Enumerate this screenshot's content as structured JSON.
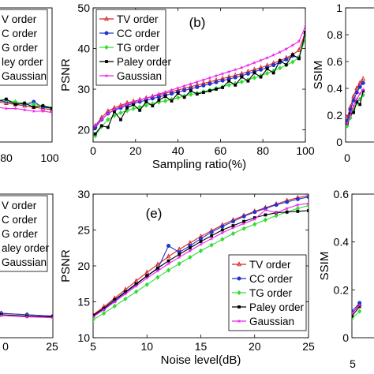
{
  "series_styles": [
    {
      "name": "TV order",
      "color": "#d62020",
      "marker": "triangle"
    },
    {
      "name": "CC order",
      "color": "#2233cc",
      "marker": "circle"
    },
    {
      "name": "TG order",
      "color": "#33dd33",
      "marker": "diamond"
    },
    {
      "name": "Paley order",
      "color": "#000000",
      "marker": "square"
    },
    {
      "name": "Gaussian",
      "color": "#ee22ee",
      "marker": "star"
    }
  ],
  "chart_data": [
    {
      "id": "panel-top-left",
      "type": "line",
      "partial": true,
      "x": [
        70,
        72,
        74,
        76,
        78,
        80,
        82,
        84,
        86,
        88,
        90,
        92,
        94,
        96,
        98,
        100
      ],
      "xticks": [
        "80",
        "100"
      ],
      "xlim": [
        68,
        100
      ],
      "ylim": [
        0,
        1
      ],
      "legend_labels": [
        "V order",
        "C order",
        "G order",
        "ley order",
        "Gaussian"
      ],
      "series": [
        {
          "name": "TV order",
          "values": [
            0.42,
            0.4,
            0.38,
            0.37,
            0.35,
            0.34,
            0.33,
            0.32,
            0.31,
            0.3,
            0.29,
            0.28,
            0.27,
            0.26,
            0.25,
            0.24
          ]
        },
        {
          "name": "CC order",
          "values": [
            0.43,
            0.41,
            0.39,
            0.38,
            0.36,
            0.35,
            0.34,
            0.33,
            0.32,
            0.31,
            0.3,
            0.29,
            0.28,
            0.3,
            0.26,
            0.25
          ]
        },
        {
          "name": "TG order",
          "values": [
            0.46,
            0.44,
            0.42,
            0.4,
            0.39,
            0.37,
            0.36,
            0.35,
            0.33,
            0.32,
            0.31,
            0.3,
            0.29,
            0.28,
            0.27,
            0.26
          ]
        },
        {
          "name": "Paley order",
          "values": [
            0.44,
            0.45,
            0.41,
            0.48,
            0.38,
            0.36,
            0.39,
            0.33,
            0.35,
            0.3,
            0.32,
            0.28,
            0.29,
            0.26,
            0.27,
            0.25
          ]
        },
        {
          "name": "Gaussian",
          "values": [
            0.36,
            0.35,
            0.33,
            0.32,
            0.31,
            0.3,
            0.29,
            0.28,
            0.27,
            0.26,
            0.25,
            0.25,
            0.24,
            0.23,
            0.23,
            0.22
          ]
        }
      ]
    },
    {
      "id": "panel-b",
      "type": "line",
      "panel_label": "(b)",
      "ylabel": "PSNR",
      "xlabel": "Sampling ratio(%)",
      "xlim": [
        0,
        100
      ],
      "ylim": [
        17,
        50
      ],
      "xticks": [
        0,
        20,
        40,
        60,
        80,
        100
      ],
      "yticks": [
        20,
        30,
        40,
        50
      ],
      "legend": [
        "TV order",
        "CC order",
        "TG order",
        "Paley order",
        "Gaussian"
      ],
      "x": [
        1,
        4,
        7,
        10,
        13,
        16,
        19,
        22,
        25,
        28,
        31,
        34,
        37,
        40,
        43,
        46,
        49,
        52,
        55,
        58,
        61,
        64,
        67,
        70,
        73,
        76,
        79,
        82,
        85,
        88,
        91,
        94,
        97,
        100
      ],
      "series": [
        {
          "name": "TV order",
          "values": [
            21.0,
            23.0,
            24.6,
            25.4,
            26.0,
            26.6,
            27.0,
            27.4,
            27.8,
            28.2,
            28.6,
            29.0,
            29.4,
            29.8,
            30.2,
            30.6,
            31.0,
            31.4,
            31.8,
            32.2,
            32.6,
            33.0,
            33.4,
            33.8,
            34.3,
            34.8,
            35.3,
            35.8,
            36.4,
            37.0,
            37.7,
            38.5,
            39.6,
            44.0
          ]
        },
        {
          "name": "CC order",
          "values": [
            20.5,
            22.5,
            24.0,
            24.8,
            25.4,
            26.0,
            26.5,
            26.9,
            27.3,
            27.7,
            28.1,
            28.5,
            28.9,
            29.3,
            29.7,
            30.1,
            30.5,
            30.9,
            31.3,
            31.7,
            32.1,
            32.5,
            32.9,
            33.3,
            33.8,
            34.3,
            34.8,
            35.3,
            35.9,
            36.6,
            37.3,
            38.2,
            37.8,
            43.0
          ]
        },
        {
          "name": "TG order",
          "values": [
            18.5,
            20.8,
            22.5,
            23.5,
            24.2,
            24.7,
            25.2,
            25.6,
            26.0,
            26.4,
            26.8,
            27.1,
            27.5,
            27.9,
            28.3,
            28.7,
            29.0,
            29.4,
            29.8,
            30.2,
            30.6,
            31.0,
            31.4,
            31.8,
            32.3,
            32.8,
            33.3,
            33.9,
            34.5,
            35.2,
            35.9,
            36.7,
            37.8,
            42.5
          ]
        },
        {
          "name": "Paley order",
          "values": [
            19.0,
            21.0,
            20.6,
            24.5,
            22.5,
            25.4,
            26.2,
            24.8,
            26.9,
            25.9,
            27.3,
            28.2,
            27.1,
            29.0,
            28.0,
            29.6,
            28.8,
            29.2,
            29.6,
            30.0,
            30.4,
            32.0,
            31.0,
            33.0,
            32.0,
            34.0,
            33.0,
            35.0,
            34.0,
            37.0,
            36.0,
            38.5,
            37.5,
            44.0
          ]
        },
        {
          "name": "Gaussian",
          "values": [
            21.0,
            22.5,
            24.0,
            25.0,
            25.7,
            26.3,
            26.8,
            27.3,
            27.8,
            28.3,
            28.8,
            29.3,
            29.8,
            30.3,
            30.8,
            31.3,
            31.8,
            32.3,
            32.8,
            33.3,
            33.8,
            34.3,
            34.8,
            35.3,
            35.9,
            36.5,
            37.1,
            37.7,
            38.4,
            39.1,
            39.9,
            40.8,
            41.8,
            45.5
          ]
        }
      ]
    },
    {
      "id": "panel-top-right",
      "type": "line",
      "partial": true,
      "ylabel": "SSIM",
      "xlim": [
        0,
        100
      ],
      "ylim": [
        0,
        1
      ],
      "yticks": [
        0,
        0.2,
        0.4,
        0.6,
        0.8,
        1
      ],
      "xticks": [
        "0"
      ],
      "x": [
        1,
        3,
        5,
        7,
        9,
        11
      ],
      "series": [
        {
          "name": "TV order",
          "values": [
            0.18,
            0.26,
            0.34,
            0.4,
            0.44,
            0.47
          ]
        },
        {
          "name": "CC order",
          "values": [
            0.16,
            0.24,
            0.31,
            0.37,
            0.41,
            0.44
          ]
        },
        {
          "name": "TG order",
          "values": [
            0.12,
            0.18,
            0.24,
            0.29,
            0.32,
            0.35
          ]
        },
        {
          "name": "Paley order",
          "values": [
            0.14,
            0.21,
            0.22,
            0.3,
            0.28,
            0.38
          ]
        },
        {
          "name": "Gaussian",
          "values": [
            0.14,
            0.2,
            0.27,
            0.32,
            0.36,
            0.39
          ]
        }
      ]
    },
    {
      "id": "panel-bottom-left",
      "type": "line",
      "partial": true,
      "x": [
        5,
        10,
        15,
        20,
        25
      ],
      "xticks": [
        "0",
        "25"
      ],
      "xlim": [
        -2,
        25
      ],
      "ylim": [
        0,
        1
      ],
      "legend_labels": [
        "V order",
        "C order",
        "G order",
        "aley order",
        "Gaussian"
      ],
      "series": [
        {
          "name": "TV order",
          "values": [
            0.2,
            0.18,
            0.17,
            0.16,
            0.15
          ]
        },
        {
          "name": "CC order",
          "values": [
            0.21,
            0.19,
            0.17,
            0.16,
            0.15
          ]
        },
        {
          "name": "TG order",
          "values": [
            0.19,
            0.17,
            0.16,
            0.15,
            0.14
          ]
        },
        {
          "name": "Paley order",
          "values": [
            0.2,
            0.18,
            0.16,
            0.15,
            0.145
          ]
        },
        {
          "name": "Gaussian",
          "values": [
            0.18,
            0.17,
            0.155,
            0.145,
            0.14
          ]
        }
      ]
    },
    {
      "id": "panel-e",
      "type": "line",
      "panel_label": "(e)",
      "ylabel": "PSNR",
      "xlabel": "Noise level(dB)",
      "xlim": [
        5,
        25
      ],
      "ylim": [
        10,
        30
      ],
      "xticks": [
        5,
        10,
        15,
        20,
        25
      ],
      "yticks": [
        10,
        15,
        20,
        25,
        30
      ],
      "legend": [
        "TV order",
        "CC order",
        "TG order",
        "Paley order",
        "Gaussian"
      ],
      "x": [
        5,
        6,
        7,
        8,
        9,
        10,
        11,
        12,
        13,
        14,
        15,
        16,
        17,
        18,
        19,
        20,
        21,
        22,
        23,
        24,
        25
      ],
      "series": [
        {
          "name": "TV order",
          "values": [
            13.2,
            14.3,
            15.5,
            16.7,
            17.9,
            19.1,
            20.2,
            21.3,
            22.3,
            23.2,
            24.1,
            24.9,
            25.7,
            26.4,
            27.0,
            27.6,
            28.1,
            28.6,
            29.1,
            29.5,
            29.8
          ]
        },
        {
          "name": "CC order",
          "values": [
            13.0,
            14.0,
            15.1,
            16.3,
            17.4,
            18.6,
            19.6,
            22.8,
            21.9,
            22.8,
            23.8,
            24.7,
            25.5,
            26.2,
            26.9,
            27.5,
            28.0,
            28.5,
            28.9,
            29.3,
            29.6
          ]
        },
        {
          "name": "TG order",
          "values": [
            12.5,
            13.4,
            14.4,
            15.4,
            16.4,
            17.4,
            18.4,
            19.4,
            20.3,
            21.2,
            22.1,
            22.9,
            23.7,
            24.5,
            25.2,
            25.8,
            26.4,
            27.0,
            27.5,
            28.0,
            28.4
          ]
        },
        {
          "name": "Paley order",
          "values": [
            13.1,
            14.1,
            15.3,
            16.4,
            17.5,
            18.6,
            19.7,
            20.7,
            21.6,
            22.5,
            23.4,
            24.2,
            25.0,
            25.6,
            26.2,
            26.7,
            27.1,
            27.4,
            27.5,
            27.6,
            27.7
          ]
        },
        {
          "name": "Gaussian",
          "values": [
            12.9,
            13.9,
            15.0,
            16.1,
            17.2,
            18.3,
            19.3,
            20.3,
            21.2,
            22.1,
            23.0,
            23.8,
            24.6,
            25.3,
            25.9,
            26.5,
            27.8,
            27.4,
            28.0,
            28.5,
            28.7
          ]
        }
      ]
    },
    {
      "id": "panel-bottom-right",
      "type": "line",
      "partial": true,
      "ylabel": "SSIM",
      "xlim": [
        5,
        25
      ],
      "ylim": [
        0,
        0.6
      ],
      "yticks": [
        0,
        0.2,
        0.4,
        0.6
      ],
      "xticks": [
        "5"
      ],
      "x": [
        5,
        6
      ],
      "series": [
        {
          "name": "TV order",
          "values": [
            0.1,
            0.14
          ]
        },
        {
          "name": "CC order",
          "values": [
            0.11,
            0.145
          ]
        },
        {
          "name": "TG order",
          "values": [
            0.08,
            0.11
          ]
        },
        {
          "name": "Paley order",
          "values": [
            0.09,
            0.13
          ]
        },
        {
          "name": "Gaussian",
          "values": [
            0.1,
            0.135
          ]
        }
      ]
    }
  ]
}
